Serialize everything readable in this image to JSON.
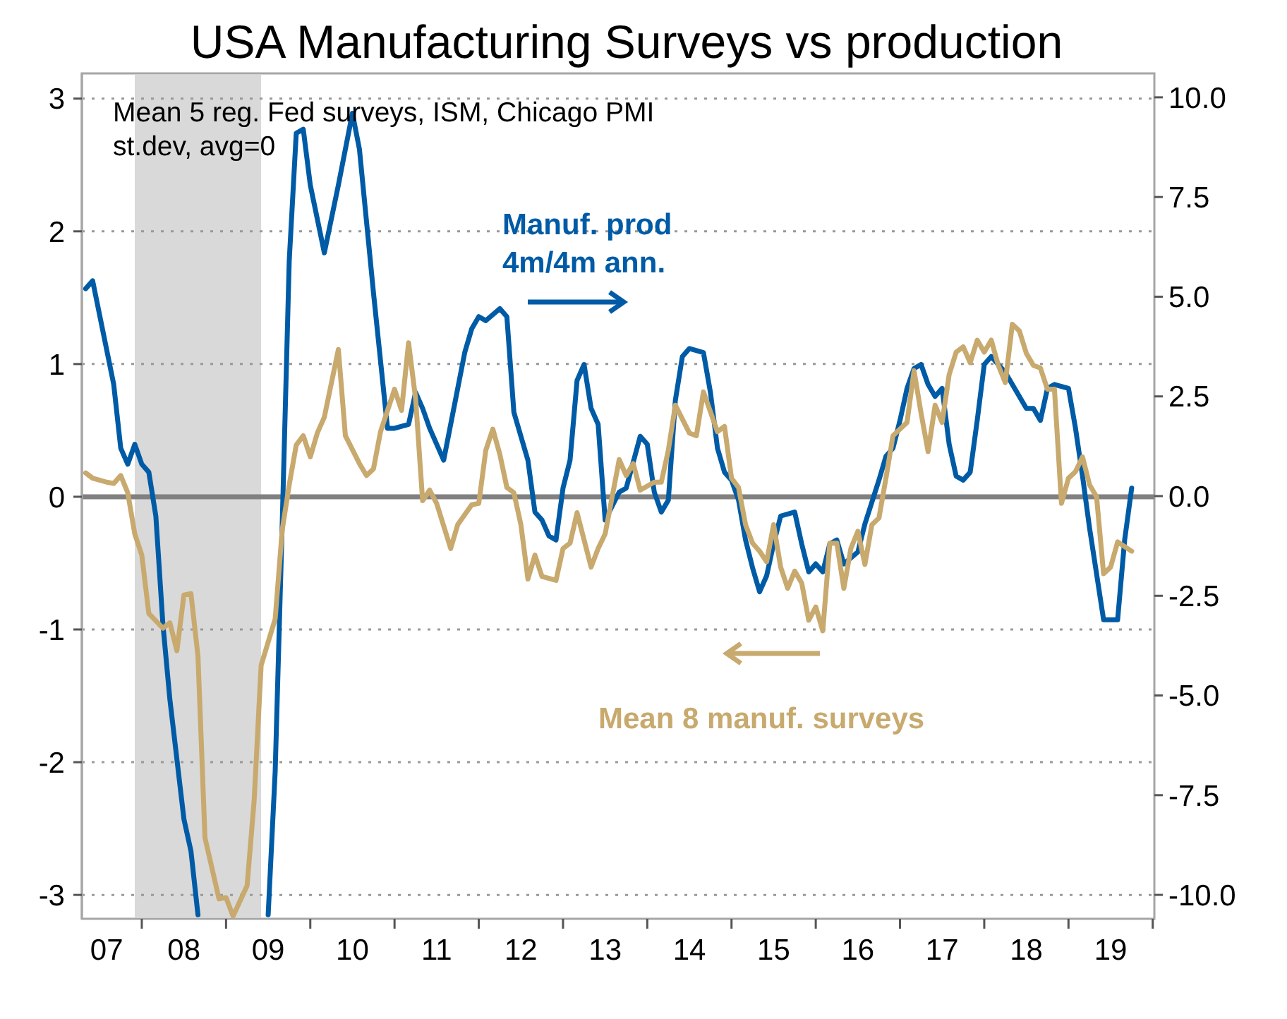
{
  "chart_data": {
    "type": "line",
    "title": "USA Manufacturing Surveys vs production",
    "annotations": [
      "Mean 5 reg. Fed surveys, ISM, Chicago PMI",
      "st.dev, avg=0"
    ],
    "xlim": [
      "2007-04-15",
      "2020-01-08"
    ],
    "xticks": [
      {
        "value": "2007-08",
        "label": "07"
      },
      {
        "value": "2008-01",
        "label": null
      },
      {
        "value": "2008-07",
        "label": "08"
      },
      {
        "value": "2009-01",
        "label": null
      },
      {
        "value": "2009-07",
        "label": "09"
      },
      {
        "value": "2010-01",
        "label": null
      },
      {
        "value": "2010-07",
        "label": "10"
      },
      {
        "value": "2011-01",
        "label": null
      },
      {
        "value": "2011-07",
        "label": "11"
      },
      {
        "value": "2012-01",
        "label": null
      },
      {
        "value": "2012-07",
        "label": "12"
      },
      {
        "value": "2013-01",
        "label": null
      },
      {
        "value": "2013-07",
        "label": "13"
      },
      {
        "value": "2014-01",
        "label": null
      },
      {
        "value": "2014-07",
        "label": "14"
      },
      {
        "value": "2015-01",
        "label": null
      },
      {
        "value": "2015-07",
        "label": "15"
      },
      {
        "value": "2016-01",
        "label": null
      },
      {
        "value": "2016-07",
        "label": "16"
      },
      {
        "value": "2017-01",
        "label": null
      },
      {
        "value": "2017-07",
        "label": "17"
      },
      {
        "value": "2018-01",
        "label": null
      },
      {
        "value": "2018-07",
        "label": "18"
      },
      {
        "value": "2019-01",
        "label": null
      },
      {
        "value": "2019-07",
        "label": "19"
      },
      {
        "value": "2020-01",
        "label": null
      }
    ],
    "ylim": [
      -3.18,
      3.19
    ],
    "yticks": [
      -3,
      -2,
      -1,
      0,
      1,
      2,
      3
    ],
    "y2lim": [
      -10.6,
      10.6
    ],
    "y2ticks": [
      {
        "value": -10,
        "label": "-10.0"
      },
      {
        "value": -7.5,
        "label": "-7.5"
      },
      {
        "value": -5,
        "label": "-5.0"
      },
      {
        "value": -2.5,
        "label": "-2.5"
      },
      {
        "value": 0,
        "label": "0.0"
      },
      {
        "value": 2.5,
        "label": "2.5"
      },
      {
        "value": 5,
        "label": "5.0"
      },
      {
        "value": 7.5,
        "label": "7.5"
      },
      {
        "value": 10,
        "label": "10.0"
      }
    ],
    "grid": "y",
    "line_style": "solid",
    "marker": "none",
    "ref_lines": [
      {
        "axis": "y",
        "value": 0,
        "color": "#808080"
      }
    ],
    "bands": [
      {
        "axis": "x",
        "from": "2007-12",
        "to": "2009-06",
        "color": "#d9d9d9"
      }
    ],
    "series": [
      {
        "name": "Manuf. prod\n4m/4m ann.",
        "color": "#005ba6",
        "axis": "y2",
        "x": [
          "2007-05",
          "2007-06",
          "2007-09",
          "2007-10",
          "2007-11",
          "2007-12",
          "2008-01",
          "2008-02",
          "2008-03",
          "2008-04",
          "2008-05",
          "2008-07",
          "2008-08",
          "2008-09",
          "2009-02",
          "2009-07",
          "2009-08",
          "2009-09",
          "2009-10",
          "2009-11",
          "2009-12",
          "2010-01",
          "2010-03",
          "2010-05",
          "2010-07",
          "2010-08",
          "2010-10",
          "2010-12",
          "2011-01",
          "2011-03",
          "2011-04",
          "2011-05",
          "2011-06",
          "2011-08",
          "2011-09",
          "2011-11",
          "2011-12",
          "2012-01",
          "2012-02",
          "2012-04",
          "2012-05",
          "2012-06",
          "2012-08",
          "2012-09",
          "2012-10",
          "2012-11",
          "2012-12",
          "2013-01",
          "2013-02",
          "2013-03",
          "2013-04",
          "2013-05",
          "2013-06",
          "2013-07",
          "2013-09",
          "2013-10",
          "2013-12",
          "2014-01",
          "2014-02",
          "2014-03",
          "2014-04",
          "2014-05",
          "2014-06",
          "2014-07",
          "2014-09",
          "2014-10",
          "2014-11",
          "2014-12",
          "2015-01",
          "2015-02",
          "2015-03",
          "2015-04",
          "2015-05",
          "2015-06",
          "2015-07",
          "2015-08",
          "2015-10",
          "2015-11",
          "2015-12",
          "2016-01",
          "2016-02",
          "2016-03",
          "2016-04",
          "2016-05",
          "2016-07",
          "2016-08",
          "2016-10",
          "2016-11",
          "2016-12",
          "2017-01",
          "2017-02",
          "2017-03",
          "2017-04",
          "2017-05",
          "2017-06",
          "2017-07",
          "2017-08",
          "2017-09",
          "2017-10",
          "2017-11",
          "2017-12",
          "2018-01",
          "2018-02",
          "2018-04",
          "2018-05",
          "2018-07",
          "2018-08",
          "2018-09",
          "2018-10",
          "2018-11",
          "2019-01",
          "2019-02",
          "2019-03",
          "2019-04",
          "2019-06",
          "2019-07",
          "2019-08",
          "2019-09",
          "2019-10"
        ],
        "values": [
          5.2,
          5.4,
          2.8,
          1.2,
          0.8,
          1.3,
          0.8,
          0.6,
          -0.5,
          -3.2,
          -5.1,
          -8.1,
          -8.9,
          -10.5,
          null,
          -10.5,
          -6.9,
          -0.7,
          5.9,
          9.1,
          9.2,
          7.8,
          6.1,
          7.8,
          9.6,
          8.7,
          5.1,
          1.7,
          1.7,
          1.8,
          2.6,
          2.2,
          1.7,
          0.9,
          1.8,
          3.6,
          4.2,
          4.5,
          4.4,
          4.7,
          4.5,
          2.1,
          0.9,
          -0.4,
          -0.6,
          -1.0,
          -1.1,
          0.2,
          0.9,
          2.9,
          3.3,
          2.2,
          1.8,
          -0.6,
          0.1,
          0.2,
          1.5,
          1.3,
          0.1,
          -0.4,
          -0.1,
          2.4,
          3.5,
          3.7,
          3.6,
          2.6,
          1.2,
          0.6,
          0.4,
          -0.1,
          -1.1,
          -1.8,
          -2.4,
          -2.0,
          -1.2,
          -0.5,
          -0.4,
          -1.2,
          -1.9,
          -1.7,
          -1.9,
          -1.2,
          -1.1,
          -1.7,
          -1.4,
          -0.7,
          0.4,
          1.0,
          1.2,
          1.9,
          2.7,
          3.2,
          3.3,
          2.8,
          2.5,
          2.7,
          1.3,
          0.5,
          0.4,
          0.6,
          1.9,
          3.3,
          3.5,
          3.1,
          2.8,
          2.2,
          2.2,
          1.9,
          2.7,
          2.8,
          2.7,
          1.7,
          0.5,
          -0.8,
          -3.1,
          -3.1,
          -3.1,
          -1.1,
          0.2
        ]
      },
      {
        "name": "Mean 8 manuf. surveys",
        "color": "#c8a96e",
        "x": [
          "2007-05",
          "2007-06",
          "2007-08",
          "2007-09",
          "2007-10",
          "2007-11",
          "2007-12",
          "2008-01",
          "2008-02",
          "2008-04",
          "2008-05",
          "2008-06",
          "2008-07",
          "2008-08",
          "2008-09",
          "2008-10",
          "2008-12",
          "2009-01",
          "2009-02",
          "2009-04",
          "2009-05",
          "2009-06",
          "2009-08",
          "2009-09",
          "2009-10",
          "2009-11",
          "2009-12",
          "2010-01",
          "2010-02",
          "2010-03",
          "2010-05",
          "2010-06",
          "2010-08",
          "2010-09",
          "2010-10",
          "2010-11",
          "2011-01",
          "2011-02",
          "2011-03",
          "2011-04",
          "2011-05",
          "2011-06",
          "2011-07",
          "2011-09",
          "2011-10",
          "2011-12",
          "2012-01",
          "2012-02",
          "2012-03",
          "2012-04",
          "2012-05",
          "2012-06",
          "2012-07",
          "2012-08",
          "2012-09",
          "2012-10",
          "2012-12",
          "2013-01",
          "2013-02",
          "2013-03",
          "2013-05",
          "2013-06",
          "2013-07",
          "2013-09",
          "2013-10",
          "2013-11",
          "2013-12",
          "2014-02",
          "2014-03",
          "2014-04",
          "2014-05",
          "2014-07",
          "2014-08",
          "2014-09",
          "2014-11",
          "2014-12",
          "2015-01",
          "2015-02",
          "2015-03",
          "2015-04",
          "2015-05",
          "2015-06",
          "2015-07",
          "2015-08",
          "2015-09",
          "2015-10",
          "2015-11",
          "2015-12",
          "2016-01",
          "2016-02",
          "2016-03",
          "2016-04",
          "2016-05",
          "2016-06",
          "2016-07",
          "2016-08",
          "2016-09",
          "2016-10",
          "2016-11",
          "2016-12",
          "2017-02",
          "2017-03",
          "2017-04",
          "2017-05",
          "2017-06",
          "2017-07",
          "2017-08",
          "2017-09",
          "2017-10",
          "2017-11",
          "2017-12",
          "2018-01",
          "2018-02",
          "2018-03",
          "2018-04",
          "2018-05",
          "2018-06",
          "2018-07",
          "2018-08",
          "2018-09",
          "2018-10",
          "2018-11",
          "2018-12",
          "2019-01",
          "2019-02",
          "2019-03",
          "2019-04",
          "2019-05",
          "2019-06",
          "2019-07",
          "2019-08",
          "2019-10"
        ],
        "values": [
          0.18,
          0.14,
          0.11,
          0.1,
          0.16,
          0.03,
          -0.28,
          -0.44,
          -0.88,
          -0.99,
          -0.95,
          -1.16,
          -0.74,
          -0.73,
          -1.2,
          -2.57,
          -3.03,
          -3.02,
          -3.16,
          -2.93,
          -2.29,
          -1.27,
          -0.92,
          -0.25,
          0.09,
          0.39,
          0.46,
          0.3,
          0.48,
          0.6,
          1.11,
          0.46,
          0.25,
          0.16,
          0.21,
          0.49,
          0.81,
          0.65,
          1.16,
          0.74,
          -0.03,
          0.05,
          -0.05,
          -0.39,
          -0.21,
          -0.06,
          -0.05,
          0.35,
          0.51,
          0.32,
          0.07,
          0.03,
          -0.21,
          -0.62,
          -0.44,
          -0.6,
          -0.63,
          -0.39,
          -0.35,
          -0.12,
          -0.53,
          -0.39,
          -0.28,
          0.28,
          0.16,
          0.25,
          0.05,
          0.11,
          0.11,
          0.35,
          0.69,
          0.48,
          0.46,
          0.79,
          0.49,
          0.53,
          0.14,
          0.07,
          -0.21,
          -0.35,
          -0.41,
          -0.49,
          -0.21,
          -0.53,
          -0.69,
          -0.56,
          -0.65,
          -0.93,
          -0.83,
          -1.01,
          -0.35,
          -0.35,
          -0.69,
          -0.39,
          -0.26,
          -0.51,
          -0.21,
          -0.16,
          0.14,
          0.46,
          0.56,
          0.95,
          0.63,
          0.34,
          0.69,
          0.56,
          0.92,
          1.09,
          1.13,
          1.01,
          1.18,
          1.09,
          1.18,
          0.99,
          0.86,
          1.3,
          1.25,
          1.08,
          0.99,
          0.97,
          0.81,
          0.81,
          -0.05,
          0.14,
          0.19,
          0.3,
          0.09,
          0.0,
          -0.58,
          -0.53,
          -0.34,
          -0.41
        ]
      }
    ]
  }
}
